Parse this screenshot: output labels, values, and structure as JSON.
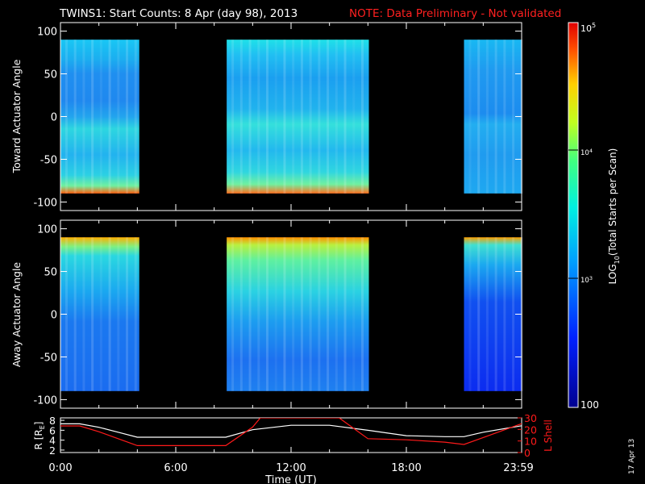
{
  "header": {
    "title": "TWINS1: Start Counts:  8 Apr (day  98), 2013",
    "note": "NOTE: Data Preliminary - Not validated",
    "note_color": "#ff2020"
  },
  "footer": {
    "date_stamp": "17 Apr 13"
  },
  "chart_data": [
    {
      "type": "heatmap",
      "panel": "toward",
      "ylabel": "Toward Actuator Angle",
      "ylim": [
        -110,
        110
      ],
      "yticks": [
        "100",
        "50",
        "0",
        "-50",
        "-100"
      ],
      "data_spans_h": [
        [
          0.0,
          4.1
        ],
        [
          8.65,
          16.05
        ],
        [
          21.0,
          24.0
        ]
      ],
      "description_levels": "log10 counts approx 2.6-3.4 typical, edges near -90 reaching 4.8-5"
    },
    {
      "type": "heatmap",
      "panel": "away",
      "ylabel": "Away Actuator Angle",
      "ylim": [
        -110,
        110
      ],
      "yticks": [
        "100",
        "50",
        "0",
        "-50",
        "-100"
      ],
      "data_spans_h": [
        [
          0.0,
          4.1
        ],
        [
          8.65,
          16.05
        ],
        [
          21.0,
          24.0
        ]
      ]
    },
    {
      "type": "line",
      "panel": "orbit",
      "ylabel_left": "R [R",
      "ylabel_left_sub": "E",
      "ylabel_left_close": "]",
      "ylabel_right": "L Shell",
      "yticks_left": [
        "8",
        "6",
        "4",
        "2"
      ],
      "yticks_right": [
        "30",
        "20",
        "10",
        "0"
      ],
      "ylim_left": [
        1.5,
        8.5
      ],
      "ylim_right": [
        0,
        30
      ],
      "series": [
        {
          "name": "R [RE]",
          "color": "#ffffff",
          "x": [
            0,
            1,
            2,
            3,
            4,
            8.6,
            10,
            12,
            14,
            16,
            18,
            20,
            21,
            22,
            24
          ],
          "y": [
            7.3,
            7.3,
            6.6,
            5.6,
            4.6,
            4.6,
            6.1,
            7.0,
            7.0,
            6.0,
            4.9,
            4.7,
            4.7,
            5.6,
            6.9
          ]
        },
        {
          "name": "L Shell",
          "color": "#ff1a1a",
          "x": [
            0,
            1,
            2,
            3,
            4,
            8.6,
            10,
            10.4,
            14.5,
            15,
            16,
            18,
            20,
            21,
            22,
            24
          ],
          "y": [
            23,
            23,
            18,
            12,
            6,
            6,
            22,
            30,
            30,
            24,
            12,
            11,
            9,
            7,
            13,
            25
          ]
        }
      ],
      "xlabel": "Time (UT)",
      "xticks": [
        "0:00",
        "6:00",
        "12:00",
        "18:00",
        "23:59"
      ]
    }
  ],
  "colorbar": {
    "label_pre": "LOG",
    "label_sub": "10",
    "label_post": "(Total Starts per Scan)",
    "tick_100": "100",
    "tick_1e3_base": "10",
    "tick_1e3_exp": "3",
    "tick_1e4_base": "10",
    "tick_1e4_exp": "4",
    "tick_1e5_base": "10",
    "tick_1e5_exp": "5"
  }
}
